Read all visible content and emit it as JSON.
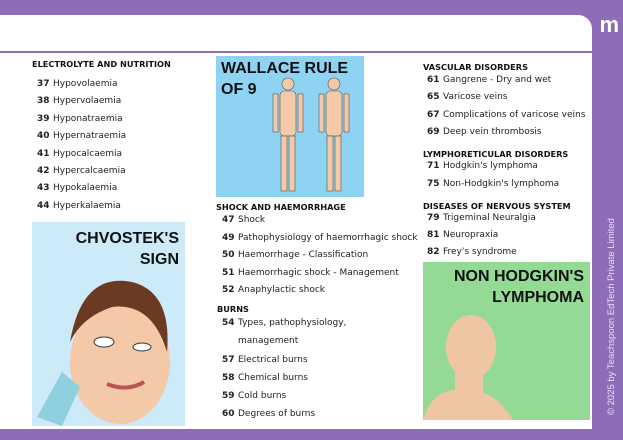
{
  "brand": {
    "logo": "m",
    "copyright": "© 2025 by Teachspoon EdTech Private Limited",
    "accent": "#8e6db8"
  },
  "col1": {
    "title": "ELECTROLYTE AND NUTRITION",
    "items": [
      {
        "n": "37",
        "t": "Hypovolaemia"
      },
      {
        "n": "38",
        "t": "Hypervolaemia"
      },
      {
        "n": "39",
        "t": "Hyponatraemia"
      },
      {
        "n": "40",
        "t": "Hypernatraemia"
      },
      {
        "n": "41",
        "t": "Hypocalcaemia"
      },
      {
        "n": "42",
        "t": "Hypercalcaemia"
      },
      {
        "n": "43",
        "t": "Hypokalaemia"
      },
      {
        "n": "44",
        "t": "Hyperkalaemia"
      }
    ]
  },
  "images": {
    "chvostek": "CHVOSTEK'S SIGN",
    "wallace": "WALLACE RULE OF 9",
    "nhl": "NON HODGKIN'S LYMPHOMA"
  },
  "col2": {
    "shock_title": "SHOCK AND HAEMORRHAGE",
    "shock": [
      {
        "n": "47",
        "t": "Shock"
      },
      {
        "n": "49",
        "t": "Pathophysiology of haemorrhagic shock"
      },
      {
        "n": "50",
        "t": "Haemorrhage - Classification"
      },
      {
        "n": "51",
        "t": "Haemorrhagic shock - Management"
      },
      {
        "n": "52",
        "t": "Anaphylactic shock"
      }
    ],
    "burns_title": "BURNS",
    "burns": [
      {
        "n": "54",
        "t": "Types, pathophysiology,"
      },
      {
        "n": "",
        "t": "management"
      },
      {
        "n": "57",
        "t": "Electrical burns"
      },
      {
        "n": "58",
        "t": "Chemical burns"
      },
      {
        "n": "59",
        "t": "Cold burns"
      },
      {
        "n": "60",
        "t": "Degrees of burns"
      }
    ]
  },
  "col3": {
    "vasc_title": "VASCULAR DISORDERS",
    "vasc": [
      {
        "n": "61",
        "t": "Gangrene - Dry and wet"
      },
      {
        "n": "65",
        "t": "Varicose veins"
      },
      {
        "n": "67",
        "t": "Complications of varicose veins"
      },
      {
        "n": "69",
        "t": "Deep vein thrombosis"
      }
    ],
    "lymph_title": "LYMPHORETICULAR DISORDERS",
    "lymph": [
      {
        "n": "71",
        "t": "Hodgkin's lymphoma"
      },
      {
        "n": "75",
        "t": "Non-Hodgkin's lymphoma"
      }
    ],
    "nerv_title": "DISEASES OF NERVOUS SYSTEM",
    "nerv": [
      {
        "n": "79",
        "t": "Trigeminal Neuralgia"
      },
      {
        "n": "81",
        "t": "Neuropraxia"
      },
      {
        "n": "82",
        "t": "Frey's syndrome"
      }
    ]
  }
}
